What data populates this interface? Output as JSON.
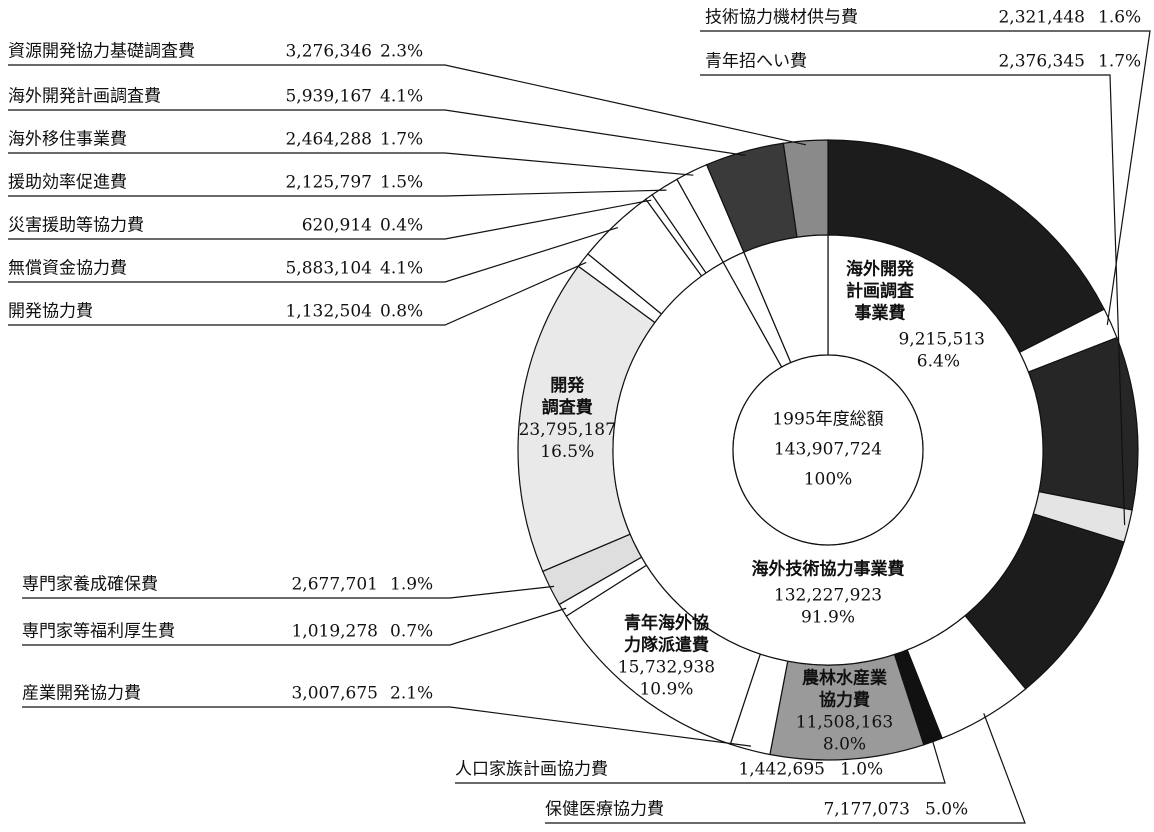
{
  "chart_data": {
    "type": "donut",
    "center": {
      "lines": [
        "1995年度総額",
        "143,907,724",
        "100%"
      ]
    },
    "inner_ring": [
      {
        "name": [
          "海外技術協力事業費"
        ],
        "amount": "132,227,923",
        "value": 91.9,
        "value_label": "91.9%",
        "color": "#ffffff"
      },
      {
        "name": null,
        "value": 1.7,
        "color": "#ffffff"
      },
      {
        "name": [
          "海外開発",
          "計画調査",
          "事業費"
        ],
        "amount": "9,215,513",
        "value": 6.4,
        "value_label": "6.4%",
        "color": "#ffffff"
      }
    ],
    "series": [
      {
        "name": null,
        "value": 17.5,
        "color": "#1c1c1c"
      },
      {
        "name": "技術協力機材供与費",
        "amount": "2,321,448",
        "value": 1.6,
        "value_label": "1.6%",
        "color": "#ffffff"
      },
      {
        "name": null,
        "value": 9.0,
        "color": "#262626"
      },
      {
        "name": "青年招へい費",
        "amount": "2,376,345",
        "value": 1.7,
        "value_label": "1.7%",
        "color": "#e4e4e4"
      },
      {
        "name": null,
        "value": 9.2,
        "color": "#1c1c1c"
      },
      {
        "name": "保健医療協力費",
        "amount": "7,177,073",
        "value": 5.0,
        "value_label": "5.0%",
        "color": "#ffffff"
      },
      {
        "name": "人口家族計画協力費",
        "amount": "1,442,695",
        "value": 1.0,
        "value_label": "1.0%",
        "color": "#111111"
      },
      {
        "name": [
          "農林水産業",
          "協力費"
        ],
        "amount": "11,508,163",
        "value": 8.0,
        "value_label": "8.0%",
        "color": "#9a9a9a"
      },
      {
        "name": "産業開発協力費",
        "amount": "3,007,675",
        "value": 2.1,
        "value_label": "2.1%",
        "color": "#ffffff"
      },
      {
        "name": [
          "青年海外協",
          "力隊派遣費"
        ],
        "amount": "15,732,938",
        "value": 10.9,
        "value_label": "10.9%",
        "color": "#ffffff"
      },
      {
        "name": "専門家等福利厚生費",
        "amount": "1,019,278",
        "value": 0.7,
        "value_label": "0.7%",
        "color": "#ffffff"
      },
      {
        "name": "専門家養成確保費",
        "amount": "2,677,701",
        "value": 1.9,
        "value_label": "1.9%",
        "color": "#dedede"
      },
      {
        "name": [
          "開発",
          "調査費"
        ],
        "amount": "23,795,187",
        "value": 16.5,
        "value_label": "16.5%",
        "color": "#e9e9e9"
      },
      {
        "name": "開発協力費",
        "amount": "1,132,504",
        "value": 0.8,
        "value_label": "0.8%",
        "color": "#ffffff"
      },
      {
        "name": "無償資金協力費",
        "amount": "5,883,104",
        "value": 4.1,
        "value_label": "4.1%",
        "color": "#ffffff"
      },
      {
        "name": "災害援助等協力費",
        "amount": "620,914",
        "value": 0.4,
        "value_label": "0.4%",
        "color": "#ffffff"
      },
      {
        "name": "援助効率促進費",
        "amount": "2,125,797",
        "value": 1.5,
        "value_label": "1.5%",
        "color": "#ffffff"
      },
      {
        "name": "海外移住事業費",
        "amount": "2,464,288",
        "value": 1.7,
        "value_label": "1.7%",
        "color": "#ffffff"
      },
      {
        "name": "海外開発計画調査費",
        "amount": "5,939,167",
        "value": 4.1,
        "value_label": "4.1%",
        "color": "#3a3a3a"
      },
      {
        "name": "資源開発協力基礎調査費",
        "amount": "3,276,346",
        "value": 2.3,
        "value_label": "2.3%",
        "color": "#8a8a8a"
      }
    ]
  }
}
